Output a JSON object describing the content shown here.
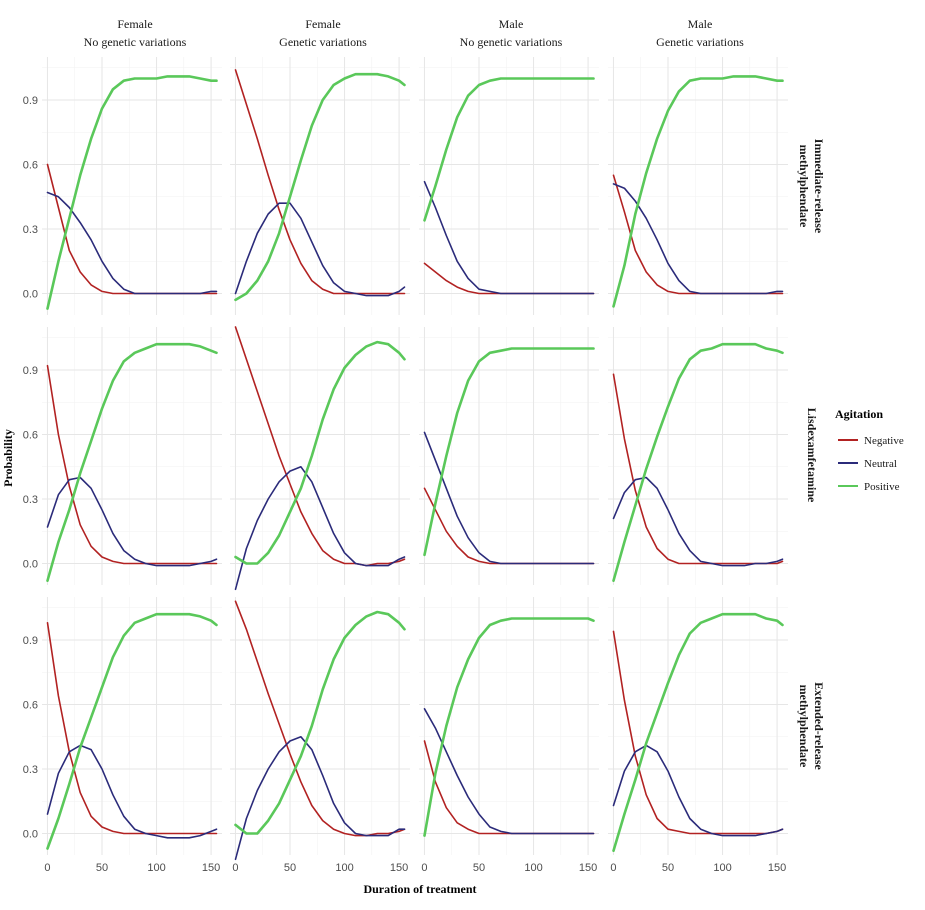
{
  "chart_data": {
    "type": "line",
    "layout": "facet-grid",
    "xlabel": "Duration of treatment",
    "ylabel": "Probability",
    "xlim": [
      -5,
      160
    ],
    "ylim": [
      -0.1,
      1.1
    ],
    "xticks": [
      0,
      50,
      100,
      150
    ],
    "yticks": [
      0.0,
      0.3,
      0.6,
      0.9
    ],
    "ytick_labels": [
      "0.0",
      "0.3",
      "0.6",
      "0.9"
    ],
    "grid": true,
    "legend": {
      "title": "Agitation",
      "position": "right",
      "entries": [
        {
          "name": "Negative",
          "color": "#b22222"
        },
        {
          "name": "Neutral",
          "color": "#2b2b7a"
        },
        {
          "name": "Positive",
          "color": "#5ac85a"
        }
      ]
    },
    "columns": [
      {
        "line1": "Female",
        "line2": "No genetic variations"
      },
      {
        "line1": "Female",
        "line2": "Genetic variations"
      },
      {
        "line1": "Male",
        "line2": "No genetic variations"
      },
      {
        "line1": "Male",
        "line2": "Genetic variations"
      }
    ],
    "rows": [
      {
        "line1": "Immediate-release",
        "line2": "methylphendate"
      },
      {
        "line1": "Lisdexamfetamine",
        "line2": ""
      },
      {
        "line1": "Extended-release",
        "line2": "methylphendate"
      }
    ],
    "x": [
      0,
      10,
      20,
      30,
      40,
      50,
      60,
      70,
      80,
      90,
      100,
      110,
      120,
      130,
      140,
      150,
      155
    ],
    "panels": [
      [
        {
          "Negative": [
            0.6,
            0.4,
            0.2,
            0.1,
            0.04,
            0.01,
            0.0,
            0.0,
            0.0,
            0.0,
            0.0,
            0.0,
            0.0,
            0.0,
            0.0,
            0.0,
            0.0
          ],
          "Neutral": [
            0.47,
            0.45,
            0.4,
            0.33,
            0.25,
            0.15,
            0.07,
            0.02,
            0.0,
            0.0,
            0.0,
            0.0,
            0.0,
            0.0,
            0.0,
            0.01,
            0.01
          ],
          "Positive": [
            -0.07,
            0.15,
            0.35,
            0.55,
            0.72,
            0.86,
            0.95,
            0.99,
            1.0,
            1.0,
            1.0,
            1.01,
            1.01,
            1.01,
            1.0,
            0.99,
            0.99
          ]
        },
        {
          "Negative": [
            1.04,
            0.88,
            0.72,
            0.55,
            0.39,
            0.25,
            0.14,
            0.06,
            0.02,
            0.0,
            0.0,
            0.0,
            0.0,
            0.0,
            0.0,
            0.0,
            0.0
          ],
          "Neutral": [
            0.0,
            0.15,
            0.28,
            0.37,
            0.42,
            0.42,
            0.35,
            0.24,
            0.13,
            0.05,
            0.01,
            0.0,
            -0.01,
            -0.01,
            -0.01,
            0.01,
            0.03
          ],
          "Positive": [
            -0.03,
            0.0,
            0.06,
            0.15,
            0.28,
            0.45,
            0.62,
            0.78,
            0.9,
            0.97,
            1.0,
            1.02,
            1.02,
            1.02,
            1.01,
            0.99,
            0.97
          ]
        },
        {
          "Negative": [
            0.14,
            0.1,
            0.06,
            0.03,
            0.01,
            0.0,
            0.0,
            0.0,
            0.0,
            0.0,
            0.0,
            0.0,
            0.0,
            0.0,
            0.0,
            0.0,
            0.0
          ],
          "Neutral": [
            0.52,
            0.4,
            0.27,
            0.15,
            0.07,
            0.02,
            0.01,
            0.0,
            0.0,
            0.0,
            0.0,
            0.0,
            0.0,
            0.0,
            0.0,
            0.0,
            0.0
          ],
          "Positive": [
            0.34,
            0.5,
            0.67,
            0.82,
            0.92,
            0.97,
            0.99,
            1.0,
            1.0,
            1.0,
            1.0,
            1.0,
            1.0,
            1.0,
            1.0,
            1.0,
            1.0
          ]
        },
        {
          "Negative": [
            0.55,
            0.38,
            0.2,
            0.1,
            0.04,
            0.01,
            0.0,
            0.0,
            0.0,
            0.0,
            0.0,
            0.0,
            0.0,
            0.0,
            0.0,
            0.0,
            0.0
          ],
          "Neutral": [
            0.51,
            0.49,
            0.43,
            0.35,
            0.25,
            0.14,
            0.06,
            0.01,
            0.0,
            0.0,
            0.0,
            0.0,
            0.0,
            0.0,
            0.0,
            0.01,
            0.01
          ],
          "Positive": [
            -0.06,
            0.13,
            0.37,
            0.56,
            0.72,
            0.85,
            0.94,
            0.99,
            1.0,
            1.0,
            1.0,
            1.01,
            1.01,
            1.01,
            1.0,
            0.99,
            0.99
          ]
        }
      ],
      [
        {
          "Negative": [
            0.92,
            0.6,
            0.36,
            0.18,
            0.08,
            0.03,
            0.01,
            0.0,
            0.0,
            0.0,
            0.0,
            0.0,
            0.0,
            0.0,
            0.0,
            0.0,
            0.0
          ],
          "Neutral": [
            0.17,
            0.32,
            0.39,
            0.4,
            0.35,
            0.25,
            0.14,
            0.06,
            0.02,
            0.0,
            -0.01,
            -0.01,
            -0.01,
            -0.01,
            0.0,
            0.01,
            0.02
          ],
          "Positive": [
            -0.08,
            0.1,
            0.25,
            0.42,
            0.57,
            0.72,
            0.85,
            0.94,
            0.98,
            1.0,
            1.02,
            1.02,
            1.02,
            1.02,
            1.01,
            0.99,
            0.98
          ]
        },
        {
          "Negative": [
            1.1,
            0.95,
            0.8,
            0.65,
            0.5,
            0.37,
            0.24,
            0.14,
            0.06,
            0.02,
            0.0,
            0.0,
            -0.01,
            0.0,
            0.0,
            0.01,
            0.02
          ],
          "Neutral": [
            -0.12,
            0.07,
            0.2,
            0.3,
            0.38,
            0.43,
            0.45,
            0.38,
            0.26,
            0.14,
            0.05,
            0.0,
            -0.01,
            -0.01,
            -0.01,
            0.02,
            0.03
          ],
          "Positive": [
            0.03,
            0.0,
            0.0,
            0.05,
            0.13,
            0.24,
            0.35,
            0.5,
            0.67,
            0.81,
            0.91,
            0.97,
            1.01,
            1.03,
            1.02,
            0.98,
            0.95
          ]
        },
        {
          "Negative": [
            0.35,
            0.25,
            0.15,
            0.08,
            0.03,
            0.01,
            0.0,
            0.0,
            0.0,
            0.0,
            0.0,
            0.0,
            0.0,
            0.0,
            0.0,
            0.0,
            0.0
          ],
          "Neutral": [
            0.61,
            0.48,
            0.35,
            0.22,
            0.12,
            0.05,
            0.01,
            0.0,
            0.0,
            0.0,
            0.0,
            0.0,
            0.0,
            0.0,
            0.0,
            0.0,
            0.0
          ],
          "Positive": [
            0.04,
            0.28,
            0.5,
            0.7,
            0.85,
            0.94,
            0.98,
            0.99,
            1.0,
            1.0,
            1.0,
            1.0,
            1.0,
            1.0,
            1.0,
            1.0,
            1.0
          ]
        },
        {
          "Negative": [
            0.88,
            0.58,
            0.34,
            0.17,
            0.07,
            0.02,
            0.0,
            0.0,
            0.0,
            0.0,
            0.0,
            0.0,
            0.0,
            0.0,
            0.0,
            0.0,
            0.01
          ],
          "Neutral": [
            0.21,
            0.33,
            0.39,
            0.4,
            0.35,
            0.25,
            0.14,
            0.06,
            0.01,
            0.0,
            -0.01,
            -0.01,
            -0.01,
            0.0,
            0.0,
            0.01,
            0.02
          ],
          "Positive": [
            -0.08,
            0.1,
            0.27,
            0.44,
            0.59,
            0.73,
            0.86,
            0.95,
            0.99,
            1.0,
            1.02,
            1.02,
            1.02,
            1.02,
            1.0,
            0.99,
            0.98
          ]
        }
      ],
      [
        {
          "Negative": [
            0.98,
            0.64,
            0.38,
            0.19,
            0.08,
            0.03,
            0.01,
            0.0,
            0.0,
            0.0,
            0.0,
            0.0,
            0.0,
            0.0,
            0.0,
            0.0,
            0.0
          ],
          "Neutral": [
            0.09,
            0.28,
            0.38,
            0.41,
            0.39,
            0.3,
            0.18,
            0.08,
            0.02,
            0.0,
            -0.01,
            -0.02,
            -0.02,
            -0.02,
            -0.01,
            0.01,
            0.02
          ],
          "Positive": [
            -0.07,
            0.07,
            0.23,
            0.4,
            0.54,
            0.68,
            0.82,
            0.92,
            0.98,
            1.0,
            1.02,
            1.02,
            1.02,
            1.02,
            1.01,
            0.99,
            0.97
          ]
        },
        {
          "Negative": [
            1.08,
            0.95,
            0.8,
            0.65,
            0.51,
            0.37,
            0.24,
            0.13,
            0.06,
            0.02,
            0.0,
            -0.01,
            -0.01,
            0.0,
            0.0,
            0.01,
            0.02
          ],
          "Neutral": [
            -0.12,
            0.07,
            0.2,
            0.3,
            0.38,
            0.43,
            0.45,
            0.39,
            0.27,
            0.14,
            0.05,
            0.0,
            -0.01,
            -0.01,
            -0.01,
            0.02,
            0.02
          ],
          "Positive": [
            0.04,
            0.0,
            0.0,
            0.06,
            0.14,
            0.25,
            0.36,
            0.5,
            0.67,
            0.81,
            0.91,
            0.97,
            1.01,
            1.03,
            1.02,
            0.98,
            0.95
          ]
        },
        {
          "Negative": [
            0.43,
            0.24,
            0.12,
            0.05,
            0.02,
            0.0,
            0.0,
            0.0,
            0.0,
            0.0,
            0.0,
            0.0,
            0.0,
            0.0,
            0.0,
            0.0,
            0.0
          ],
          "Neutral": [
            0.58,
            0.49,
            0.38,
            0.27,
            0.17,
            0.09,
            0.03,
            0.01,
            0.0,
            0.0,
            0.0,
            0.0,
            0.0,
            0.0,
            0.0,
            0.0,
            0.0
          ],
          "Positive": [
            -0.01,
            0.28,
            0.5,
            0.68,
            0.81,
            0.91,
            0.97,
            0.99,
            1.0,
            1.0,
            1.0,
            1.0,
            1.0,
            1.0,
            1.0,
            1.0,
            0.99
          ]
        },
        {
          "Negative": [
            0.94,
            0.62,
            0.36,
            0.18,
            0.07,
            0.02,
            0.01,
            0.0,
            0.0,
            0.0,
            0.0,
            0.0,
            0.0,
            0.0,
            0.0,
            0.01,
            0.02
          ],
          "Neutral": [
            0.13,
            0.29,
            0.38,
            0.41,
            0.38,
            0.29,
            0.17,
            0.07,
            0.02,
            0.0,
            -0.01,
            -0.01,
            -0.01,
            -0.01,
            0.0,
            0.01,
            0.02
          ],
          "Positive": [
            -0.08,
            0.09,
            0.25,
            0.42,
            0.56,
            0.7,
            0.83,
            0.93,
            0.98,
            1.0,
            1.02,
            1.02,
            1.02,
            1.02,
            1.0,
            0.99,
            0.97
          ]
        }
      ]
    ]
  }
}
